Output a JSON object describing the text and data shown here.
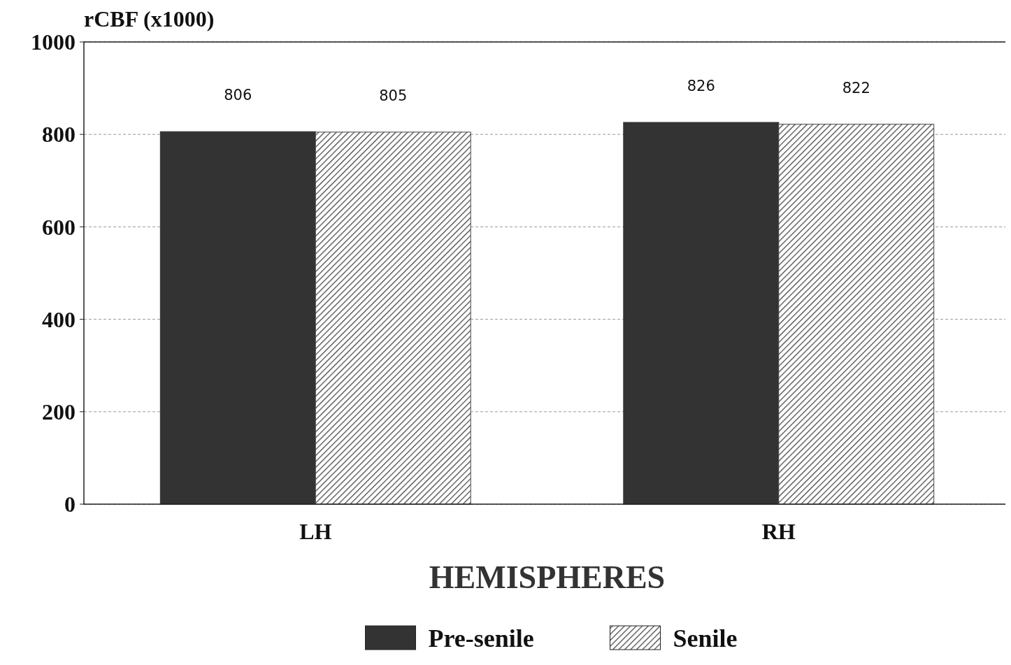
{
  "chart_data": {
    "type": "bar",
    "ylabel": "rCBF (x1000)",
    "xlabel": "HEMISPHERES",
    "categories": [
      "LH",
      "RH"
    ],
    "series": [
      {
        "name": "Pre-senile",
        "color": "#333333",
        "values": [
          806,
          826
        ]
      },
      {
        "name": "Senile",
        "color": "#444444",
        "values": [
          805,
          822
        ]
      }
    ],
    "ylim": [
      0,
      1000
    ],
    "yticks": [
      0,
      200,
      400,
      600,
      800,
      1000
    ],
    "grid": "y",
    "legend": "bottom",
    "data_labels": true
  }
}
